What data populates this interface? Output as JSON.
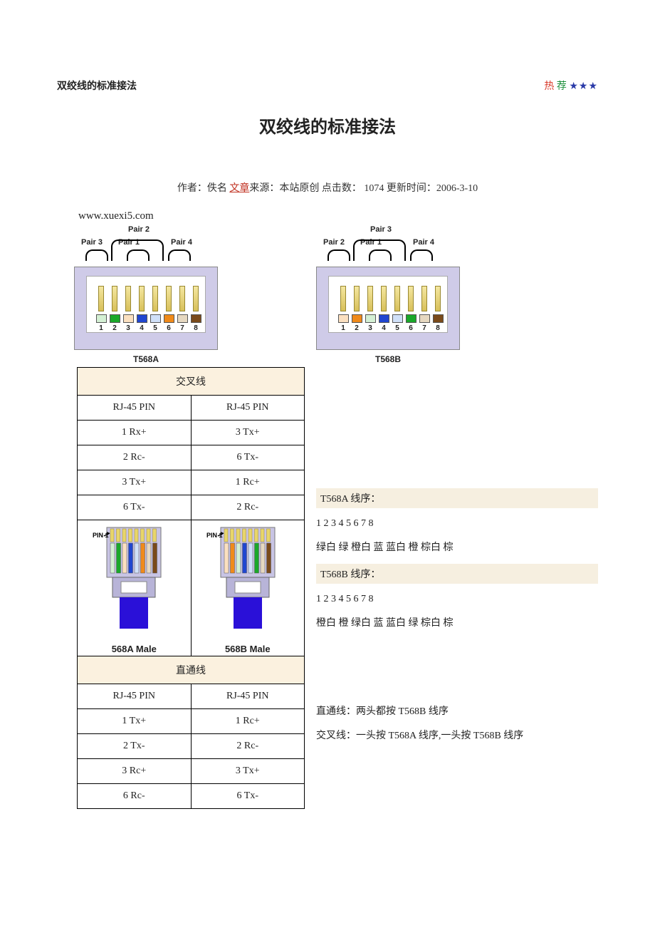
{
  "page": {
    "top_title": "双绞线的标准接法",
    "hot_re": "热",
    "hot_jian": "荐",
    "stars": "★★★",
    "main_title": "双绞线的标准接法",
    "meta_prefix": "作者：佚名 ",
    "meta_link": "文章",
    "meta_suffix": "来源：本站原创 点击数：  1074  更新时间：2006-3-10",
    "site": "www.xuexi5.com"
  },
  "colors": {
    "whitegreen": "#d4f0d4",
    "green": "#1aa82a",
    "whiteorange": "#fbe0c0",
    "orange": "#f08a1a",
    "whiteblue": "#d0e0f8",
    "blue": "#2046d0",
    "whitebrown": "#e6d8c0",
    "brown": "#7a4a1a"
  },
  "jackA": {
    "label": "T568A",
    "pair_top": "Pair 2",
    "pair_l": "Pair 3",
    "pair_m": "Pair 1",
    "pair_r": "Pair 4",
    "pins": [
      {
        "n": "1",
        "c": "whitegreen"
      },
      {
        "n": "2",
        "c": "green"
      },
      {
        "n": "3",
        "c": "whiteorange"
      },
      {
        "n": "4",
        "c": "blue"
      },
      {
        "n": "5",
        "c": "whiteblue"
      },
      {
        "n": "6",
        "c": "orange"
      },
      {
        "n": "7",
        "c": "whitebrown"
      },
      {
        "n": "8",
        "c": "brown"
      }
    ]
  },
  "jackB": {
    "label": "T568B",
    "pair_top": "Pair 3",
    "pair_l": "Pair 2",
    "pair_m": "Pair 1",
    "pair_r": "Pair 4",
    "pins": [
      {
        "n": "1",
        "c": "whiteorange"
      },
      {
        "n": "2",
        "c": "orange"
      },
      {
        "n": "3",
        "c": "whitegreen"
      },
      {
        "n": "4",
        "c": "blue"
      },
      {
        "n": "5",
        "c": "whiteblue"
      },
      {
        "n": "6",
        "c": "green"
      },
      {
        "n": "7",
        "c": "whitebrown"
      },
      {
        "n": "8",
        "c": "brown"
      }
    ]
  },
  "crossover": {
    "title": "交叉线",
    "col1": "RJ-45 PIN",
    "col2": "RJ-45 PIN",
    "rows": [
      [
        "1 Rx+",
        "3 Tx+"
      ],
      [
        "2 Rc-",
        "6 Tx-"
      ],
      [
        "3 Tx+",
        "1 Rc+"
      ],
      [
        "6 Tx-",
        "2 Rc-"
      ]
    ]
  },
  "plugs": {
    "pin1": "PIN 1",
    "labelA": "568A Male",
    "labelB": "568B Male"
  },
  "straight": {
    "title": "直通线",
    "col1": "RJ-45 PIN",
    "col2": "RJ-45 PIN",
    "rows": [
      [
        "1 Tx+",
        "1 Rc+"
      ],
      [
        "2 Tx-",
        "2 Rc-"
      ],
      [
        "3 Rc+",
        "3 Tx+"
      ],
      [
        "6 Rc-",
        "6 Tx-"
      ]
    ]
  },
  "rightcol": {
    "t568a_hdr": "T568A 线序：",
    "numbers": "1  2  3  4  5  6  7  8",
    "t568a_colors": "绿白 绿 橙白 蓝 蓝白 橙 棕白 棕",
    "t568b_hdr": "T568B 线序：",
    "t568b_colors": "橙白 橙 绿白 蓝 蓝白 绿 棕白 棕",
    "straight_note": "直通线：两头都按 T568B 线序",
    "cross_note": "交叉线：一头按 T568A 线序,一头按 T568B 线序"
  }
}
